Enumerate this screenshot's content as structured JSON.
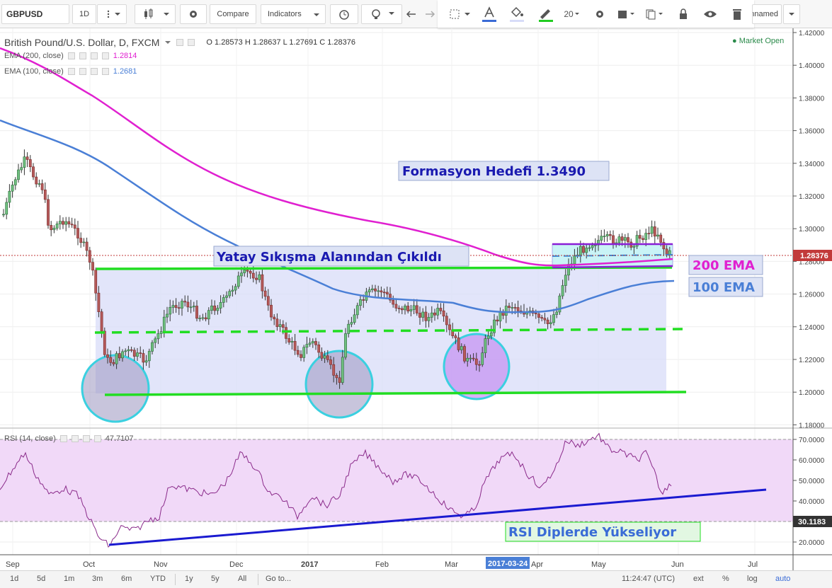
{
  "toolbar": {
    "symbol": "GBPUSD",
    "interval": "1D",
    "compare_label": "Compare",
    "indicators_label": "Indicators",
    "line_width": "20",
    "layout_name": "Unnamed"
  },
  "header": {
    "title": "British Pound/U.S. Dollar, D, FXCM",
    "ohlc": "O 1.28573 H 1.28637 L 1.27691 C 1.28376",
    "market_status": "Market Open",
    "ema200_label": "EMA (200, close)",
    "ema200_value": "1.2814",
    "ema100_label": "EMA (100, close)",
    "ema100_value": "1.2681",
    "rsi_label": "RSI (14, close)",
    "rsi_value": "47.7107"
  },
  "annotations": {
    "target": "Formasyon Hedefi 1.3490",
    "breakout": "Yatay Sıkışma Alanından Çıkıldı",
    "ema200": "200 EMA",
    "ema100": "100 EMA",
    "rsi_note": "RSI Diplerde Yükseliyor"
  },
  "price_axis": {
    "ticks": [
      "1.42000",
      "1.40000",
      "1.38000",
      "1.36000",
      "1.34000",
      "1.32000",
      "1.30000",
      "1.28000",
      "1.26000",
      "1.24000",
      "1.22000",
      "1.20000",
      "1.18000"
    ],
    "last_price": "1.28376"
  },
  "rsi_axis": {
    "ticks": [
      "70.0000",
      "60.0000",
      "50.0000",
      "40.0000",
      "30.0000",
      "20.0000"
    ],
    "level_label": "30.1183"
  },
  "time_axis": {
    "labels": [
      "Sep",
      "Oct",
      "Nov",
      "Dec",
      "2017",
      "Feb",
      "Mar",
      "Apr",
      "May",
      "Jun",
      "Jul"
    ],
    "crosshair_date": "2017-03-24"
  },
  "bottombar": {
    "ranges": [
      "1d",
      "5d",
      "1m",
      "3m",
      "6m",
      "YTD",
      "1y",
      "5y",
      "All"
    ],
    "goto": "Go to...",
    "clock": "11:24:47 (UTC)",
    "options": [
      "ext",
      "%",
      "log",
      "auto"
    ]
  },
  "colors": {
    "ema200": "#e020d0",
    "ema100": "#4a7fd6",
    "green": "#22dd22",
    "candle_up": "#2c6b3a",
    "candle_down": "#7a2a2a",
    "range_fill": "#d8dcf8",
    "circle": "#3ad0e0",
    "annotation_text": "#1a1ab0"
  }
}
